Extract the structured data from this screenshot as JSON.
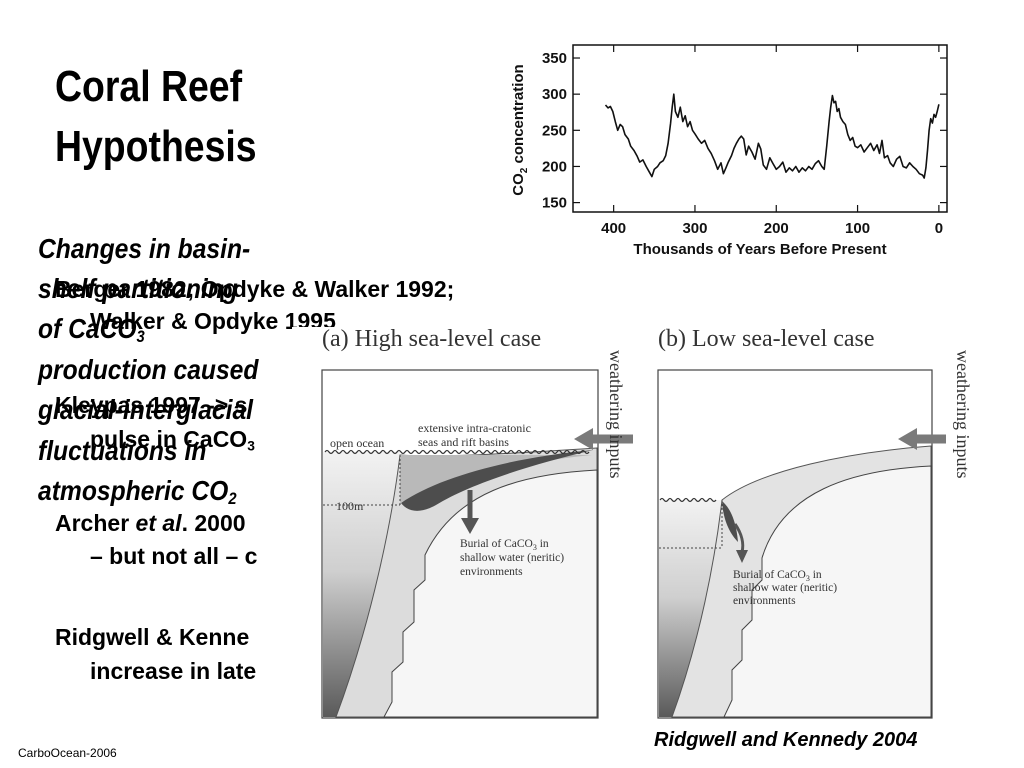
{
  "slide": {
    "title_lines": [
      "Coral Reef",
      "Hypothesis"
    ],
    "footer": "CarboOcean-2006",
    "caption": "Ridgwell and Kennedy 2004"
  },
  "hypothesis": {
    "lines": [
      "Changes in basin-",
      "shelf partitioning",
      {
        "text": "of CaCO",
        "sub": "3"
      },
      "production caused",
      "glacial-interglacial",
      "fluctuations in",
      {
        "text": "atmospheric CO",
        "sub": "2"
      }
    ]
  },
  "bullets": [
    {
      "text": "Berger 1982; Opdyke & Walker 1992;"
    },
    {
      "text": "Walker & Opdyke 1995"
    },
    {
      "text": "Kleypas 1997 -> s"
    },
    {
      "text": "pulse in CaCO",
      "sub": "3"
    },
    {
      "prefix": "Archer ",
      "italic": "et al",
      "suffix": ". 2000"
    },
    {
      "text": "– but not all – c"
    },
    {
      "text": "Ridgwell & Kenne"
    },
    {
      "text": "increase in late"
    }
  ],
  "chart_data": {
    "type": "line",
    "xlabel": "Thousands of Years Before Present",
    "ylabel": {
      "base": "CO",
      "sub": "2",
      "rest": " concentration"
    },
    "xticks": [
      400,
      300,
      200,
      100,
      0
    ],
    "yticks": [
      350,
      300,
      250,
      200,
      150
    ],
    "xlim": [
      450,
      -10
    ],
    "ylim": [
      137,
      368
    ],
    "x_reversed": true,
    "series": [
      {
        "x": [
          410,
          407,
          404,
          401,
          398,
          395,
          392,
          389,
          386,
          382,
          379,
          375,
          371,
          368,
          364,
          360,
          356,
          353,
          350,
          346,
          343,
          339,
          336,
          333,
          330,
          328,
          326,
          324,
          321,
          318,
          315,
          312,
          309,
          306,
          303,
          300,
          296,
          292,
          288,
          284,
          280,
          276,
          272,
          268,
          265,
          262,
          259,
          255,
          252,
          249,
          246,
          243,
          240,
          237,
          234,
          230,
          226,
          222,
          219,
          216,
          212,
          208,
          204,
          200,
          196,
          192,
          188,
          184,
          180,
          176,
          172,
          168,
          164,
          160,
          156,
          152,
          148,
          144,
          141,
          138,
          135,
          133,
          131,
          129,
          127,
          125,
          123,
          121,
          118,
          115,
          112,
          109,
          106,
          103,
          100,
          96,
          92,
          88,
          84,
          80,
          76,
          73,
          70,
          67,
          63,
          60,
          56,
          52,
          48,
          44,
          40,
          36,
          32,
          28,
          24,
          20,
          18,
          16,
          14,
          12,
          10,
          8,
          6,
          4,
          2,
          0
        ],
        "y": [
          285,
          281,
          283,
          276,
          262,
          250,
          258,
          255,
          244,
          238,
          228,
          222,
          214,
          206,
          209,
          200,
          192,
          186,
          196,
          200,
          205,
          208,
          215,
          232,
          260,
          282,
          300,
          276,
          268,
          282,
          262,
          270,
          255,
          262,
          250,
          245,
          238,
          232,
          236,
          225,
          218,
          208,
          196,
          205,
          190,
          198,
          206,
          215,
          225,
          232,
          238,
          242,
          238,
          216,
          228,
          220,
          210,
          232,
          224,
          202,
          196,
          212,
          204,
          196,
          200,
          206,
          192,
          198,
          194,
          200,
          192,
          198,
          194,
          200,
          196,
          204,
          208,
          200,
          196,
          228,
          262,
          282,
          298,
          288,
          290,
          276,
          280,
          268,
          262,
          258,
          244,
          236,
          240,
          228,
          226,
          230,
          220,
          226,
          232,
          222,
          230,
          218,
          236,
          212,
          215,
          205,
          200,
          210,
          214,
          200,
          198,
          205,
          200,
          196,
          190,
          188,
          184,
          198,
          222,
          250,
          266,
          260,
          272,
          268,
          276,
          286
        ]
      }
    ]
  },
  "diagrams": {
    "high": {
      "title": "(a) High sea-level case",
      "seas_label": [
        "extensive intra-cratonic",
        "seas and rift basins"
      ],
      "open_ocean": "open ocean",
      "depth": "100m",
      "burial": {
        "base": "Burial of CaCO",
        "sub": "3",
        "rest": " in",
        "line2": "shallow water (neritic)",
        "line3": "environments"
      },
      "weathering": "weathering inputs"
    },
    "low": {
      "title": "(b) Low sea-level case",
      "burial": {
        "base": "Burial of CaCO",
        "sub": "3",
        "rest": " in",
        "line2": "shallow water (neritic)",
        "line3": "environments"
      },
      "weathering": "weathering inputs"
    }
  }
}
